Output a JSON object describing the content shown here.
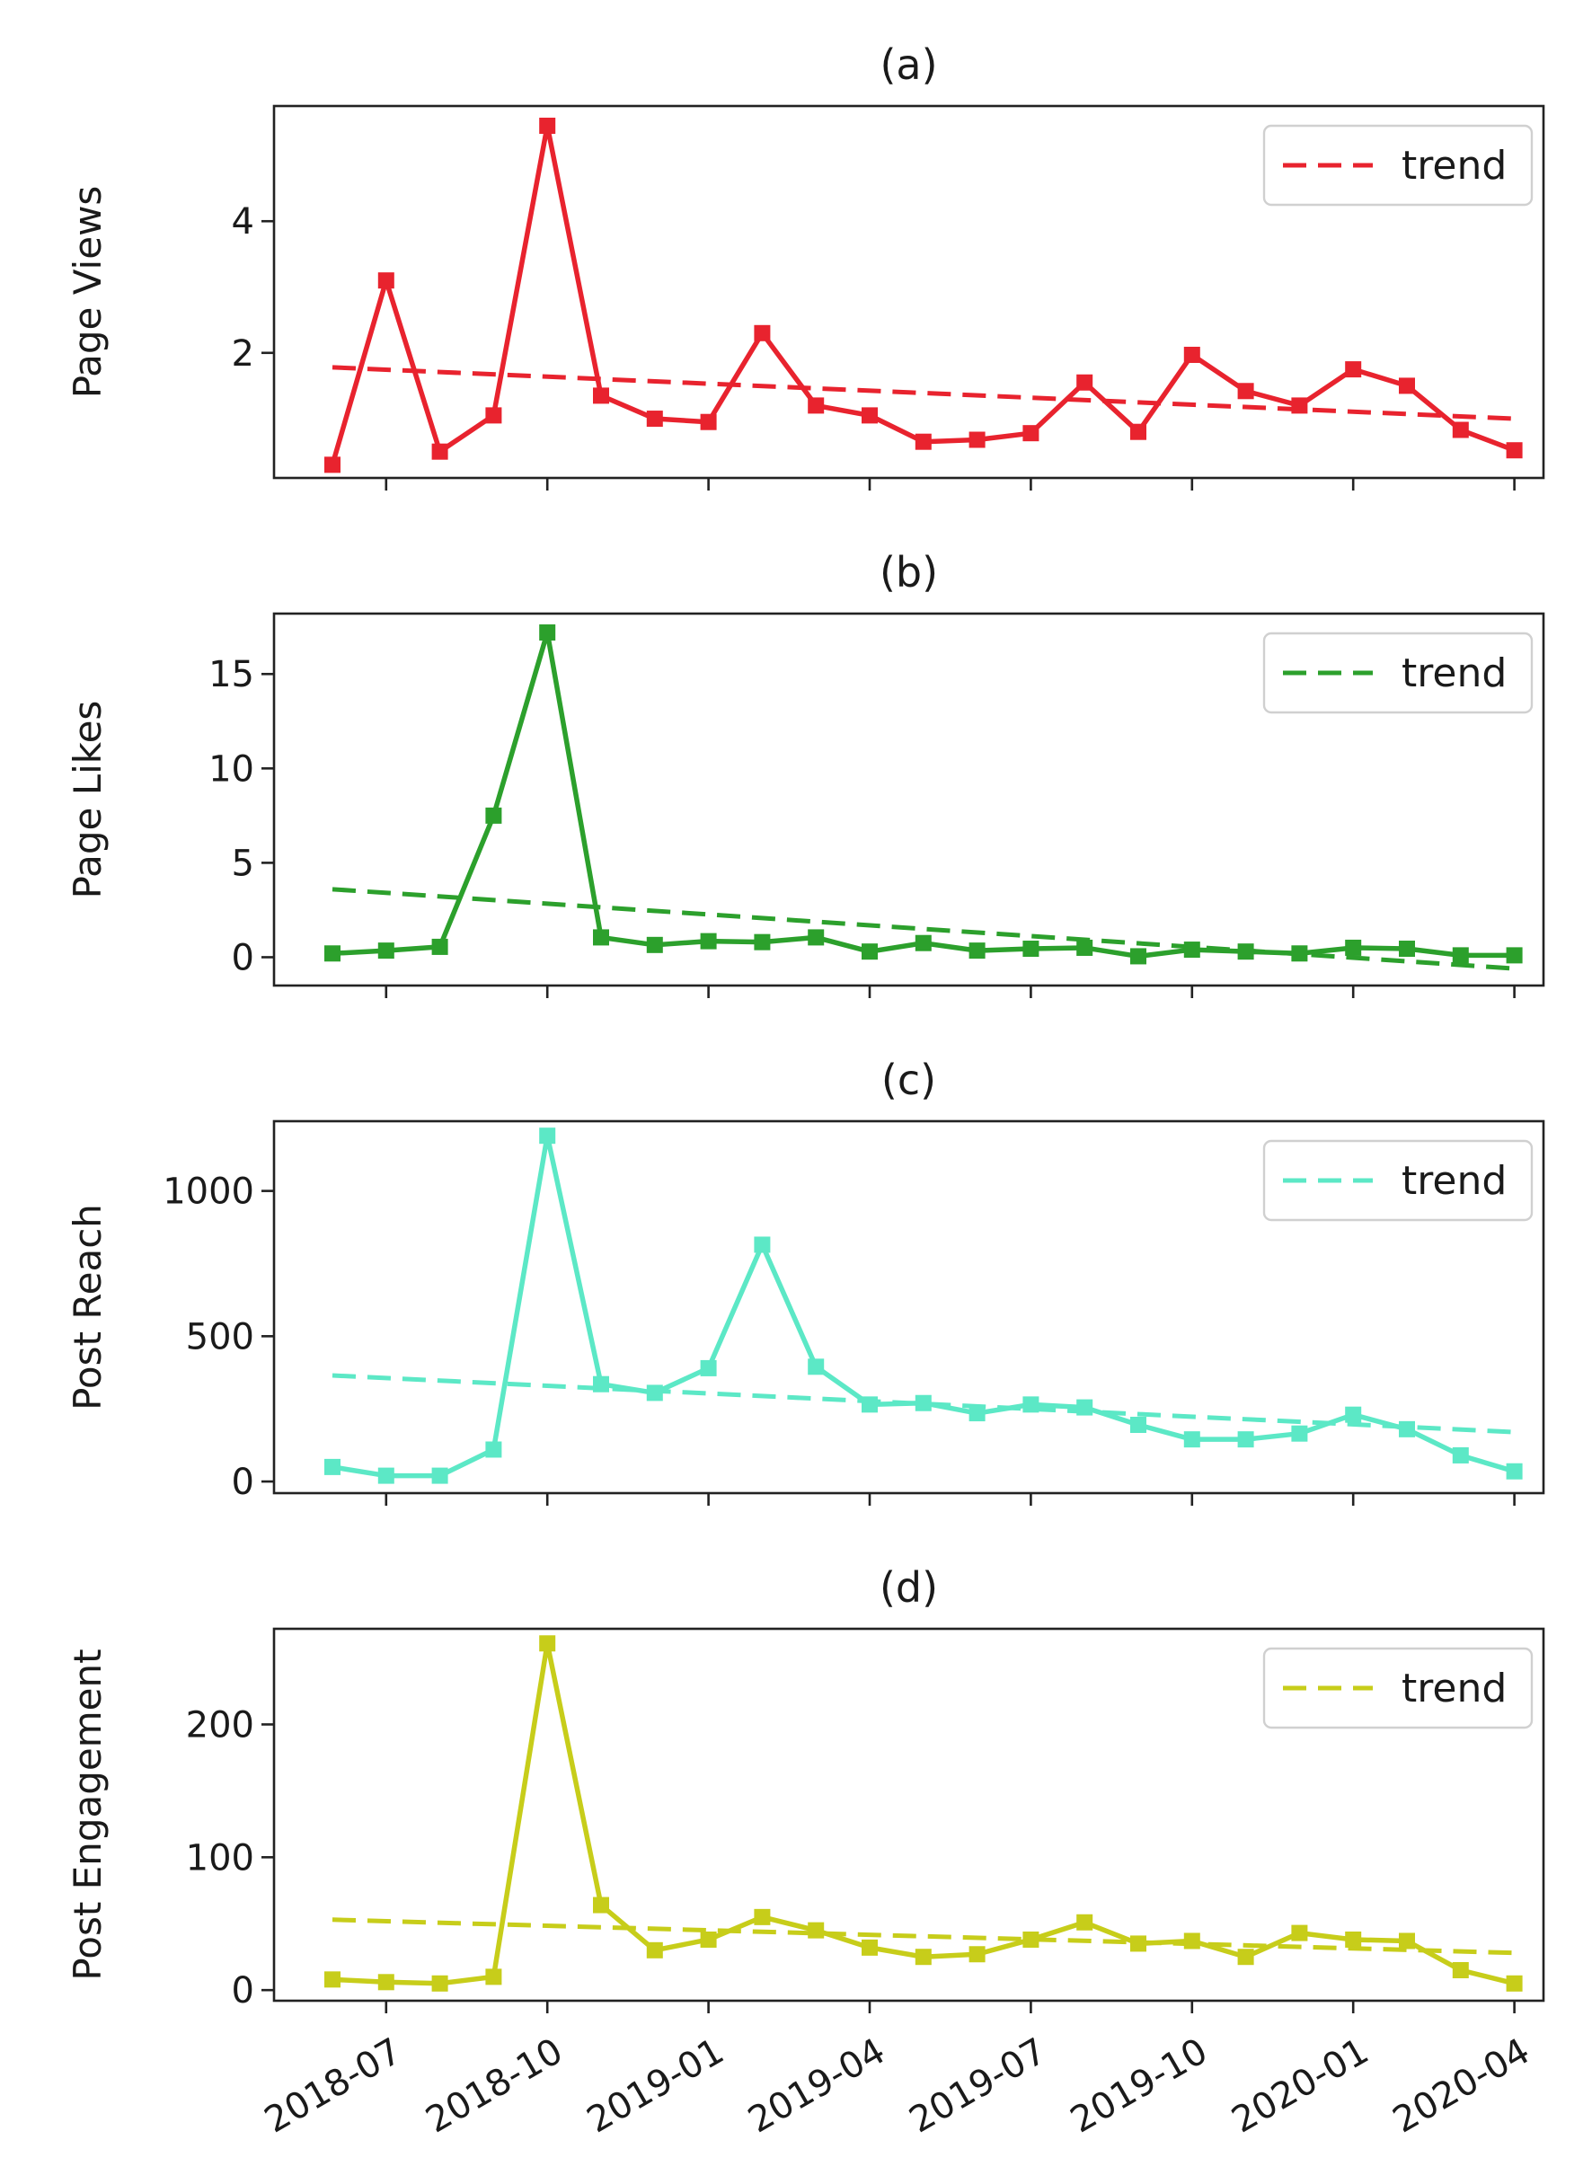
{
  "chart_data": [
    {
      "type": "line",
      "title": "(a)",
      "ylabel": "Page Views",
      "xlabel": "",
      "ylim": [
        0.1,
        5.75
      ],
      "yticks": [
        2,
        4
      ],
      "color": "#e8232e",
      "legend": {
        "label": "trend",
        "placement": "top-right"
      },
      "values": [
        0.3,
        3.1,
        0.5,
        1.05,
        5.45,
        1.35,
        1.0,
        0.95,
        2.3,
        1.2,
        1.05,
        0.65,
        0.68,
        0.78,
        1.55,
        0.8,
        1.97,
        1.42,
        1.2,
        1.75,
        1.5,
        0.83,
        0.52
      ],
      "trend": [
        1.78,
        1.0
      ]
    },
    {
      "type": "line",
      "title": "(b)",
      "ylabel": "Page Likes",
      "xlabel": "",
      "ylim": [
        -1.5,
        18.2
      ],
      "yticks": [
        0,
        5,
        10,
        15
      ],
      "color": "#2ca02c",
      "legend": {
        "label": "trend",
        "placement": "top-right"
      },
      "values": [
        0.2,
        0.35,
        0.55,
        7.5,
        17.2,
        1.05,
        0.65,
        0.85,
        0.8,
        1.05,
        0.3,
        0.75,
        0.35,
        0.45,
        0.5,
        0.05,
        0.4,
        0.3,
        0.2,
        0.5,
        0.45,
        0.1,
        0.1
      ],
      "trend": [
        3.6,
        -0.6
      ]
    },
    {
      "type": "line",
      "title": "(c)",
      "ylabel": "Post Reach",
      "xlabel": "",
      "ylim": [
        -40,
        1240
      ],
      "yticks": [
        0,
        500,
        1000
      ],
      "color": "#5ce8c6",
      "legend": {
        "label": "trend",
        "placement": "top-right"
      },
      "values": [
        50,
        20,
        20,
        110,
        1190,
        335,
        305,
        390,
        815,
        395,
        265,
        270,
        235,
        265,
        255,
        195,
        145,
        145,
        165,
        230,
        180,
        90,
        35
      ],
      "trend": [
        365,
        170
      ]
    },
    {
      "type": "line",
      "title": "(d)",
      "ylabel": "Post Engagement",
      "xlabel": "",
      "ylim": [
        -8,
        272
      ],
      "yticks": [
        0,
        100,
        200
      ],
      "color": "#c7cd1a",
      "legend": {
        "label": "trend",
        "placement": "top-right"
      },
      "values": [
        8,
        6,
        5,
        10,
        261,
        64,
        30,
        38,
        55,
        45,
        32,
        25,
        27,
        38,
        51,
        35,
        37,
        25,
        43,
        38,
        37,
        15,
        5
      ],
      "trend": [
        53,
        28
      ]
    }
  ],
  "x_axis": {
    "start_month": "2018-06",
    "n_points": 23,
    "tick_labels": [
      "2018-07",
      "2018-10",
      "2019-01",
      "2019-04",
      "2019-07",
      "2019-10",
      "2020-01",
      "2020-04"
    ],
    "tick_point_index": [
      1,
      4,
      7,
      10,
      13,
      16,
      19,
      22
    ]
  }
}
